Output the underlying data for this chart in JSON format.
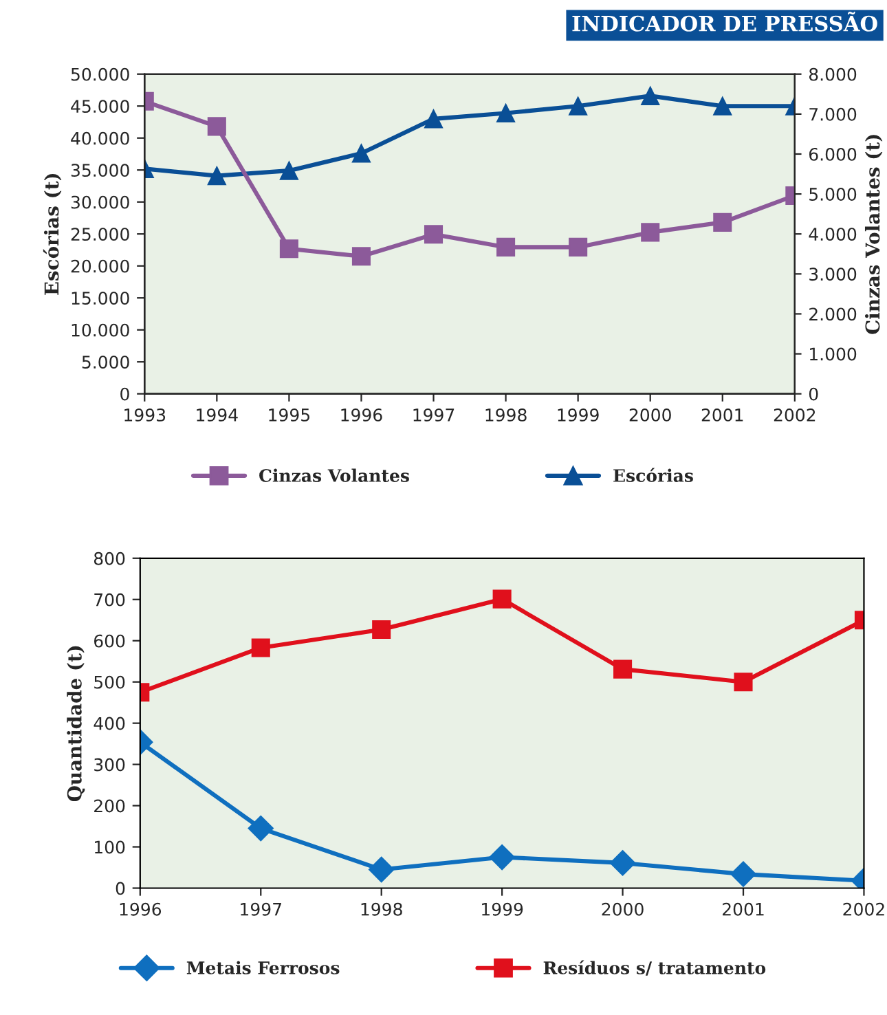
{
  "chart_data": [
    {
      "type": "line",
      "title": "INDICADOR DE PRESSÃO",
      "ylabel": "Escórias (t)",
      "y2label": "Cinzas Volantes (t)",
      "x": [
        1993,
        1994,
        1995,
        1996,
        1997,
        1998,
        1999,
        2000,
        2001,
        2002
      ],
      "xlim": [
        1993,
        2002
      ],
      "xticks": [
        1993,
        1994,
        1995,
        1996,
        1997,
        1998,
        1999,
        2000,
        2001,
        2002
      ],
      "ylim": [
        0,
        50000
      ],
      "yticks": [
        0,
        {
          "value": 5000,
          "label": "5.000"
        },
        {
          "value": 10000,
          "label": "10.000"
        },
        {
          "value": 15000,
          "label": "15.000"
        },
        {
          "value": 20000,
          "label": "20.000"
        },
        {
          "value": 25000,
          "label": "25.000"
        },
        {
          "value": 30000,
          "label": "30.000"
        },
        {
          "value": 35000,
          "label": "35.000"
        },
        {
          "value": 40000,
          "label": "40.000"
        },
        {
          "value": 45000,
          "label": "45.000"
        },
        {
          "value": 50000,
          "label": "50.000"
        }
      ],
      "y2lim": [
        0,
        8000
      ],
      "y2ticks": [
        0,
        {
          "value": 1000,
          "label": "1.000"
        },
        {
          "value": 2000,
          "label": "2.000"
        },
        {
          "value": 3000,
          "label": "3.000"
        },
        {
          "value": 4000,
          "label": "4.000"
        },
        {
          "value": 5000,
          "label": "5.000"
        },
        {
          "value": 6000,
          "label": "6.000"
        },
        {
          "value": 7000,
          "label": "7.000"
        },
        {
          "value": 8000,
          "label": "8.000"
        }
      ],
      "grid": false,
      "legend": "bottom",
      "series": [
        {
          "name": "Cinzas Volantes",
          "color": "#8c5a9a",
          "marker": "square",
          "axis": "y2",
          "values": [
            7320,
            6690,
            3630,
            3440,
            3990,
            3670,
            3670,
            4040,
            4290,
            4960
          ]
        },
        {
          "name": "Escórias",
          "color": "#0a4f96",
          "marker": "triangle",
          "values": [
            35200,
            34100,
            34900,
            37600,
            43000,
            43900,
            45000,
            46600,
            45000,
            45000
          ]
        }
      ]
    },
    {
      "type": "line",
      "ylabel": "Quantidade (t)",
      "x": [
        1996,
        1997,
        1998,
        1999,
        2000,
        2001,
        2002
      ],
      "xlim": [
        1996,
        2002
      ],
      "xticks": [
        1996,
        1997,
        1998,
        1999,
        2000,
        2001,
        2002
      ],
      "ylim": [
        0,
        800
      ],
      "yticks": [
        0,
        100,
        200,
        300,
        400,
        500,
        600,
        700,
        800
      ],
      "grid": false,
      "legend": "bottom",
      "series": [
        {
          "name": "Metais Ferrosos",
          "color": "#0f6fbf",
          "marker": "diamond",
          "values": [
            354,
            145,
            45,
            75,
            61,
            34,
            18
          ]
        },
        {
          "name": "Resíduos s/ tratamento",
          "color": "#e0101c",
          "marker": "square",
          "values": [
            475,
            583,
            627,
            701,
            531,
            500,
            650
          ]
        }
      ]
    }
  ]
}
